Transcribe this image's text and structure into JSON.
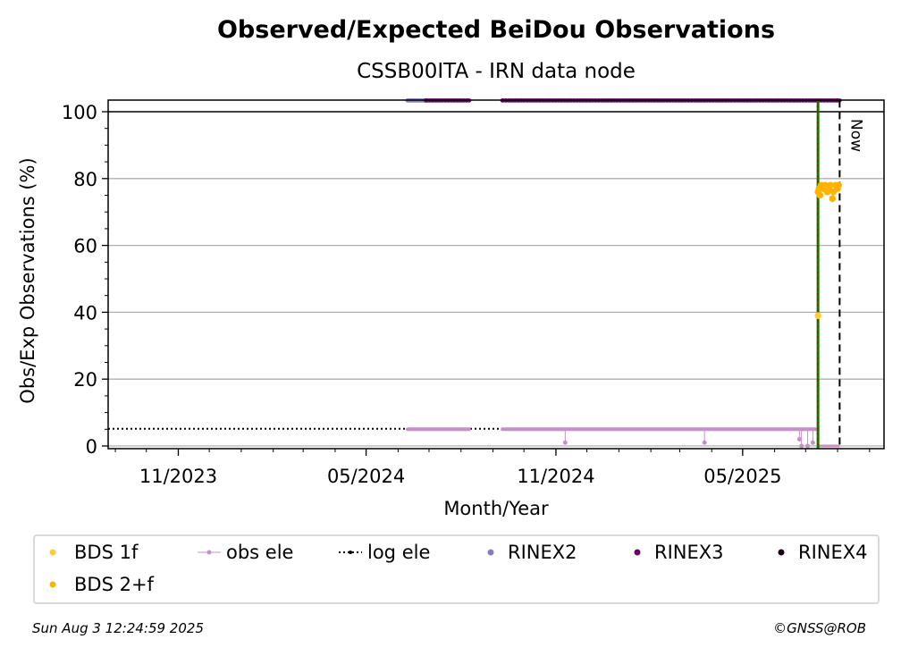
{
  "chart_data": {
    "type": "scatter",
    "title": "Observed/Expected BeiDou Observations",
    "subtitle": "CSSB00ITA - IRN data node",
    "xlabel": "Month/Year",
    "ylabel": "Obs/Exp Observations (%)",
    "ylim": [
      0,
      100
    ],
    "yticks": [
      0,
      20,
      40,
      60,
      80,
      100
    ],
    "xlim": [
      "2023-08-25",
      "2025-09-15"
    ],
    "xticks": [
      {
        "date": "2023-11-01",
        "label": "11/2023"
      },
      {
        "date": "2024-05-01",
        "label": "05/2024"
      },
      {
        "date": "2024-11-01",
        "label": "11/2024"
      },
      {
        "date": "2025-05-01",
        "label": "05/2025"
      }
    ],
    "grid": "horizontal",
    "now_label": "Now",
    "now_date": "2025-08-03",
    "change_date": "2025-07-13",
    "log_ele_level": 5,
    "series": [
      {
        "name": "BDS 1f",
        "color": "#ffcc33",
        "points": [
          [
            "2025-07-13",
            39
          ]
        ]
      },
      {
        "name": "BDS 2+f",
        "color": "#ffb300",
        "points": [
          [
            "2025-07-13",
            76
          ],
          [
            "2025-07-14",
            77
          ],
          [
            "2025-07-15",
            75
          ],
          [
            "2025-07-16",
            78
          ],
          [
            "2025-07-18",
            77
          ],
          [
            "2025-07-20",
            78
          ],
          [
            "2025-07-22",
            76
          ],
          [
            "2025-07-24",
            77
          ],
          [
            "2025-07-25",
            78
          ],
          [
            "2025-07-27",
            74
          ],
          [
            "2025-07-28",
            76
          ],
          [
            "2025-07-30",
            78
          ],
          [
            "2025-08-01",
            77
          ],
          [
            "2025-08-02",
            78
          ]
        ]
      },
      {
        "name": "obs ele",
        "color": "#c78fc7",
        "segments": [
          [
            "2024-06-10",
            "2024-08-10"
          ],
          [
            "2024-09-10",
            "2025-07-13"
          ]
        ],
        "level": 5,
        "drops": [
          [
            "2024-11-10",
            1
          ],
          [
            "2025-03-25",
            1
          ],
          [
            "2025-06-25",
            2
          ],
          [
            "2025-06-27",
            0
          ],
          [
            "2025-07-03",
            0
          ],
          [
            "2025-07-08",
            1
          ]
        ]
      },
      {
        "name": "log ele",
        "color": "#000000",
        "level": 5,
        "range": [
          "2023-08-25",
          "2025-07-13"
        ]
      },
      {
        "name": "RINEX2",
        "color": "#8080c0",
        "range": [
          "2024-06-10",
          "2024-06-28"
        ],
        "level": 101.5
      },
      {
        "name": "RINEX3",
        "color": "#660066",
        "ranges": [
          [
            "2024-06-28",
            "2024-08-10"
          ],
          [
            "2024-09-10",
            "2025-08-03"
          ]
        ],
        "level": 101.5
      },
      {
        "name": "RINEX4",
        "color": "#1a001a",
        "level": 0,
        "range": [
          "2025-07-13",
          "2025-08-03"
        ]
      }
    ]
  },
  "legend": {
    "items": [
      "BDS 1f",
      "obs ele",
      "log ele",
      "RINEX2",
      "RINEX3",
      "RINEX4",
      "BDS 2+f"
    ]
  },
  "footer": {
    "timestamp": "Sun Aug  3 12:24:59 2025",
    "copyright": "©GNSS@ROB"
  }
}
